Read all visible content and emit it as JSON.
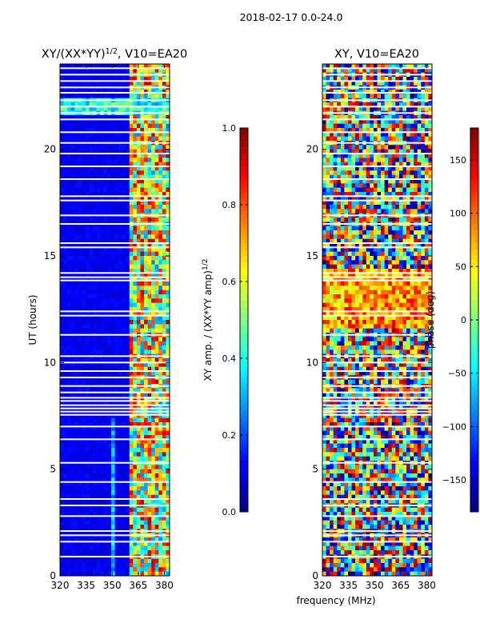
{
  "suptitle": "2018-02-17 0.0-24.0",
  "chart_data": [
    {
      "type": "heatmap",
      "title": "XY/(XX*YY)",
      "title_sup": "1/2",
      "title_suffix": ", V10=EA20",
      "xlabel": "",
      "ylabel": "UT (hours)",
      "xlim": [
        320,
        383
      ],
      "ylim": [
        0,
        24
      ],
      "xticks": [
        320,
        335,
        350,
        365,
        380
      ],
      "yticks": [
        0,
        5,
        10,
        15,
        20
      ],
      "colorbar": {
        "label": "XY amp. / (XX*YY amp)",
        "label_sup": "1/2",
        "range": [
          0.0,
          1.0
        ],
        "ticks": [
          "0.0",
          "0.2",
          "0.4",
          "0.6",
          "0.8",
          "1.0"
        ],
        "tick_values": [
          0.0,
          0.2,
          0.4,
          0.6,
          0.8,
          1.0
        ],
        "colormap": "jet"
      },
      "features": {
        "baseline_value": 0.08,
        "rfi_band_mhz": [
          360,
          383
        ],
        "rfi_values": [
          0.3,
          0.9
        ]
      }
    },
    {
      "type": "heatmap",
      "title": "XY, V10=EA20",
      "xlabel": "frequency (MHz)",
      "ylabel": "",
      "xlim": [
        320,
        383
      ],
      "ylim": [
        0,
        24
      ],
      "xticks": [
        320,
        335,
        350,
        365,
        380
      ],
      "yticks": [
        0,
        5,
        10,
        15,
        20
      ],
      "colorbar": {
        "label": "phase (deg)",
        "range": [
          -180,
          180
        ],
        "ticks": [
          "150",
          "100",
          "50",
          "0",
          "−50",
          "−100",
          "−150"
        ],
        "tick_values": [
          150,
          100,
          50,
          0,
          -50,
          -100,
          -150
        ],
        "colormap": "jet"
      },
      "features": {
        "phase_values_deg": [
          -180,
          180
        ],
        "mostly_random_with_coherent_band_hours": [
          11.5,
          14.5
        ]
      }
    }
  ],
  "flagged_gaps_hours": [
    0.9,
    1.6,
    1.9,
    2.1,
    2.8,
    3.3,
    3.6,
    4.4,
    5.3,
    6.4,
    7.0,
    7.55,
    7.7,
    7.85,
    8.0,
    8.2,
    8.35,
    8.6,
    8.9,
    9.3,
    9.6,
    10.0,
    10.3,
    11.3,
    12.2,
    12.4,
    13.85,
    14.0,
    14.2,
    15.4,
    15.6,
    16.5,
    16.9,
    17.6,
    17.8,
    18.6,
    19.2,
    19.8,
    20.3,
    20.8,
    21.4,
    21.7,
    22.0,
    22.3,
    22.65,
    22.9,
    23.2,
    23.5,
    23.8
  ]
}
